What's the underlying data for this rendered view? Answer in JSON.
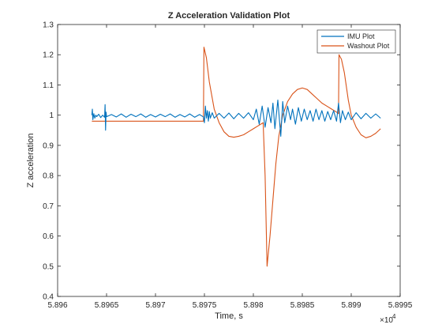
{
  "chart_data": {
    "type": "line",
    "title": "Z Acceleration Validation Plot",
    "xlabel": "Time, s",
    "ylabel": "Z acceleration",
    "x_multiplier_label": "×10",
    "x_multiplier_exponent": "4",
    "xlim": [
      58960,
      58995
    ],
    "ylim": [
      0.4,
      1.3
    ],
    "x_ticks": [
      58960,
      58965,
      58970,
      58975,
      58980,
      58985,
      58990,
      58995
    ],
    "x_tick_labels": [
      "5.896",
      "5.8965",
      "5.897",
      "5.8975",
      "5.898",
      "5.8985",
      "5.899",
      "5.8995"
    ],
    "y_ticks": [
      0.4,
      0.5,
      0.6,
      0.7,
      0.8,
      0.9,
      1.0,
      1.1,
      1.2,
      1.3
    ],
    "y_tick_labels": [
      "0.4",
      "0.5",
      "0.6",
      "0.7",
      "0.8",
      "0.9",
      "1",
      "1.1",
      "1.2",
      "1.3"
    ],
    "grid": false,
    "legend_position": "top-right",
    "series": [
      {
        "name": "IMU Plot",
        "color": "#0072BD",
        "points": [
          [
            58963.5,
            1.0
          ],
          [
            58963.55,
            1.02
          ],
          [
            58963.6,
            0.985
          ],
          [
            58963.7,
            1.005
          ],
          [
            58963.8,
            0.99
          ],
          [
            58963.9,
            1.0
          ],
          [
            58964.0,
            0.995
          ],
          [
            58964.2,
            1.003
          ],
          [
            58964.4,
            0.992
          ],
          [
            58964.6,
            1.0
          ],
          [
            58964.8,
            0.993
          ],
          [
            58964.85,
            1.035
          ],
          [
            58964.9,
            0.95
          ],
          [
            58964.95,
            1.01
          ],
          [
            58965.0,
            0.995
          ],
          [
            58965.5,
            1.002
          ],
          [
            58966.0,
            0.994
          ],
          [
            58966.5,
            1.004
          ],
          [
            58967.0,
            0.993
          ],
          [
            58967.5,
            1.003
          ],
          [
            58968.0,
            0.995
          ],
          [
            58968.5,
            1.004
          ],
          [
            58969.0,
            0.993
          ],
          [
            58969.5,
            1.002
          ],
          [
            58970.0,
            0.994
          ],
          [
            58970.5,
            1.003
          ],
          [
            58971.0,
            0.995
          ],
          [
            58971.5,
            1.004
          ],
          [
            58972.0,
            0.993
          ],
          [
            58972.5,
            1.002
          ],
          [
            58973.0,
            0.994
          ],
          [
            58973.5,
            1.004
          ],
          [
            58974.0,
            0.993
          ],
          [
            58974.5,
            1.002
          ],
          [
            58974.9,
            0.994
          ],
          [
            58975.0,
            0.975
          ],
          [
            58975.1,
            1.03
          ],
          [
            58975.2,
            0.99
          ],
          [
            58975.3,
            1.015
          ],
          [
            58975.4,
            0.98
          ],
          [
            58975.5,
            1.012
          ],
          [
            58975.6,
            0.99
          ],
          [
            58975.8,
            1.008
          ],
          [
            58976.0,
            0.99
          ],
          [
            58976.5,
            1.006
          ],
          [
            58977.0,
            0.99
          ],
          [
            58977.5,
            1.007
          ],
          [
            58978.0,
            0.988
          ],
          [
            58978.5,
            1.006
          ],
          [
            58979.0,
            0.99
          ],
          [
            58979.5,
            1.008
          ],
          [
            58980.0,
            0.985
          ],
          [
            58980.3,
            1.02
          ],
          [
            58980.6,
            0.97
          ],
          [
            58980.9,
            1.03
          ],
          [
            58981.2,
            0.96
          ],
          [
            58981.5,
            1.025
          ],
          [
            58981.8,
            0.975
          ],
          [
            58982.0,
            1.04
          ],
          [
            58982.2,
            0.955
          ],
          [
            58982.5,
            1.05
          ],
          [
            58982.8,
            0.93
          ],
          [
            58983.0,
            1.045
          ],
          [
            58983.2,
            0.975
          ],
          [
            58983.5,
            1.03
          ],
          [
            58983.8,
            0.985
          ],
          [
            58984.0,
            1.02
          ],
          [
            58984.3,
            0.97
          ],
          [
            58984.6,
            1.025
          ],
          [
            58984.9,
            0.98
          ],
          [
            58985.2,
            1.02
          ],
          [
            58985.5,
            0.985
          ],
          [
            58985.8,
            1.015
          ],
          [
            58986.1,
            0.98
          ],
          [
            58986.4,
            1.02
          ],
          [
            58986.7,
            0.985
          ],
          [
            58987.0,
            1.015
          ],
          [
            58987.3,
            0.98
          ],
          [
            58987.6,
            1.012
          ],
          [
            58987.9,
            0.985
          ],
          [
            58988.2,
            1.015
          ],
          [
            58988.5,
            0.98
          ],
          [
            58988.7,
            1.04
          ],
          [
            58988.9,
            0.975
          ],
          [
            58989.1,
            1.015
          ],
          [
            58989.4,
            0.985
          ],
          [
            58989.7,
            1.01
          ],
          [
            58990.0,
            0.985
          ],
          [
            58990.5,
            1.008
          ],
          [
            58991.0,
            0.988
          ],
          [
            58991.5,
            1.006
          ],
          [
            58992.0,
            0.99
          ],
          [
            58992.5,
            1.004
          ],
          [
            58993.0,
            0.99
          ]
        ]
      },
      {
        "name": "Washout Plot",
        "color": "#D95319",
        "points": [
          [
            58963.5,
            0.98
          ],
          [
            58974.9,
            0.98
          ],
          [
            58974.95,
            1.225
          ],
          [
            58975.2,
            1.19
          ],
          [
            58975.5,
            1.11
          ],
          [
            58976.0,
            1.02
          ],
          [
            58976.5,
            0.975
          ],
          [
            58977.0,
            0.945
          ],
          [
            58977.5,
            0.93
          ],
          [
            58978.0,
            0.927
          ],
          [
            58978.5,
            0.93
          ],
          [
            58979.0,
            0.935
          ],
          [
            58979.5,
            0.945
          ],
          [
            58980.0,
            0.955
          ],
          [
            58980.5,
            0.965
          ],
          [
            58981.0,
            0.975
          ],
          [
            58981.2,
            0.8
          ],
          [
            58981.4,
            0.5
          ],
          [
            58981.7,
            0.6
          ],
          [
            58982.0,
            0.72
          ],
          [
            58982.3,
            0.84
          ],
          [
            58982.6,
            0.93
          ],
          [
            58983.0,
            1.0
          ],
          [
            58983.5,
            1.045
          ],
          [
            58984.0,
            1.07
          ],
          [
            58984.5,
            1.085
          ],
          [
            58985.0,
            1.09
          ],
          [
            58985.5,
            1.085
          ],
          [
            58986.0,
            1.07
          ],
          [
            58986.5,
            1.055
          ],
          [
            58987.0,
            1.04
          ],
          [
            58987.5,
            1.03
          ],
          [
            58988.0,
            1.02
          ],
          [
            58988.5,
            1.01
          ],
          [
            58988.7,
            1.005
          ],
          [
            58988.75,
            1.2
          ],
          [
            58989.0,
            1.185
          ],
          [
            58989.3,
            1.14
          ],
          [
            58989.7,
            1.05
          ],
          [
            58990.0,
            1.0
          ],
          [
            58990.5,
            0.96
          ],
          [
            58991.0,
            0.935
          ],
          [
            58991.5,
            0.925
          ],
          [
            58992.0,
            0.93
          ],
          [
            58992.5,
            0.94
          ],
          [
            58993.0,
            0.955
          ]
        ]
      }
    ]
  }
}
